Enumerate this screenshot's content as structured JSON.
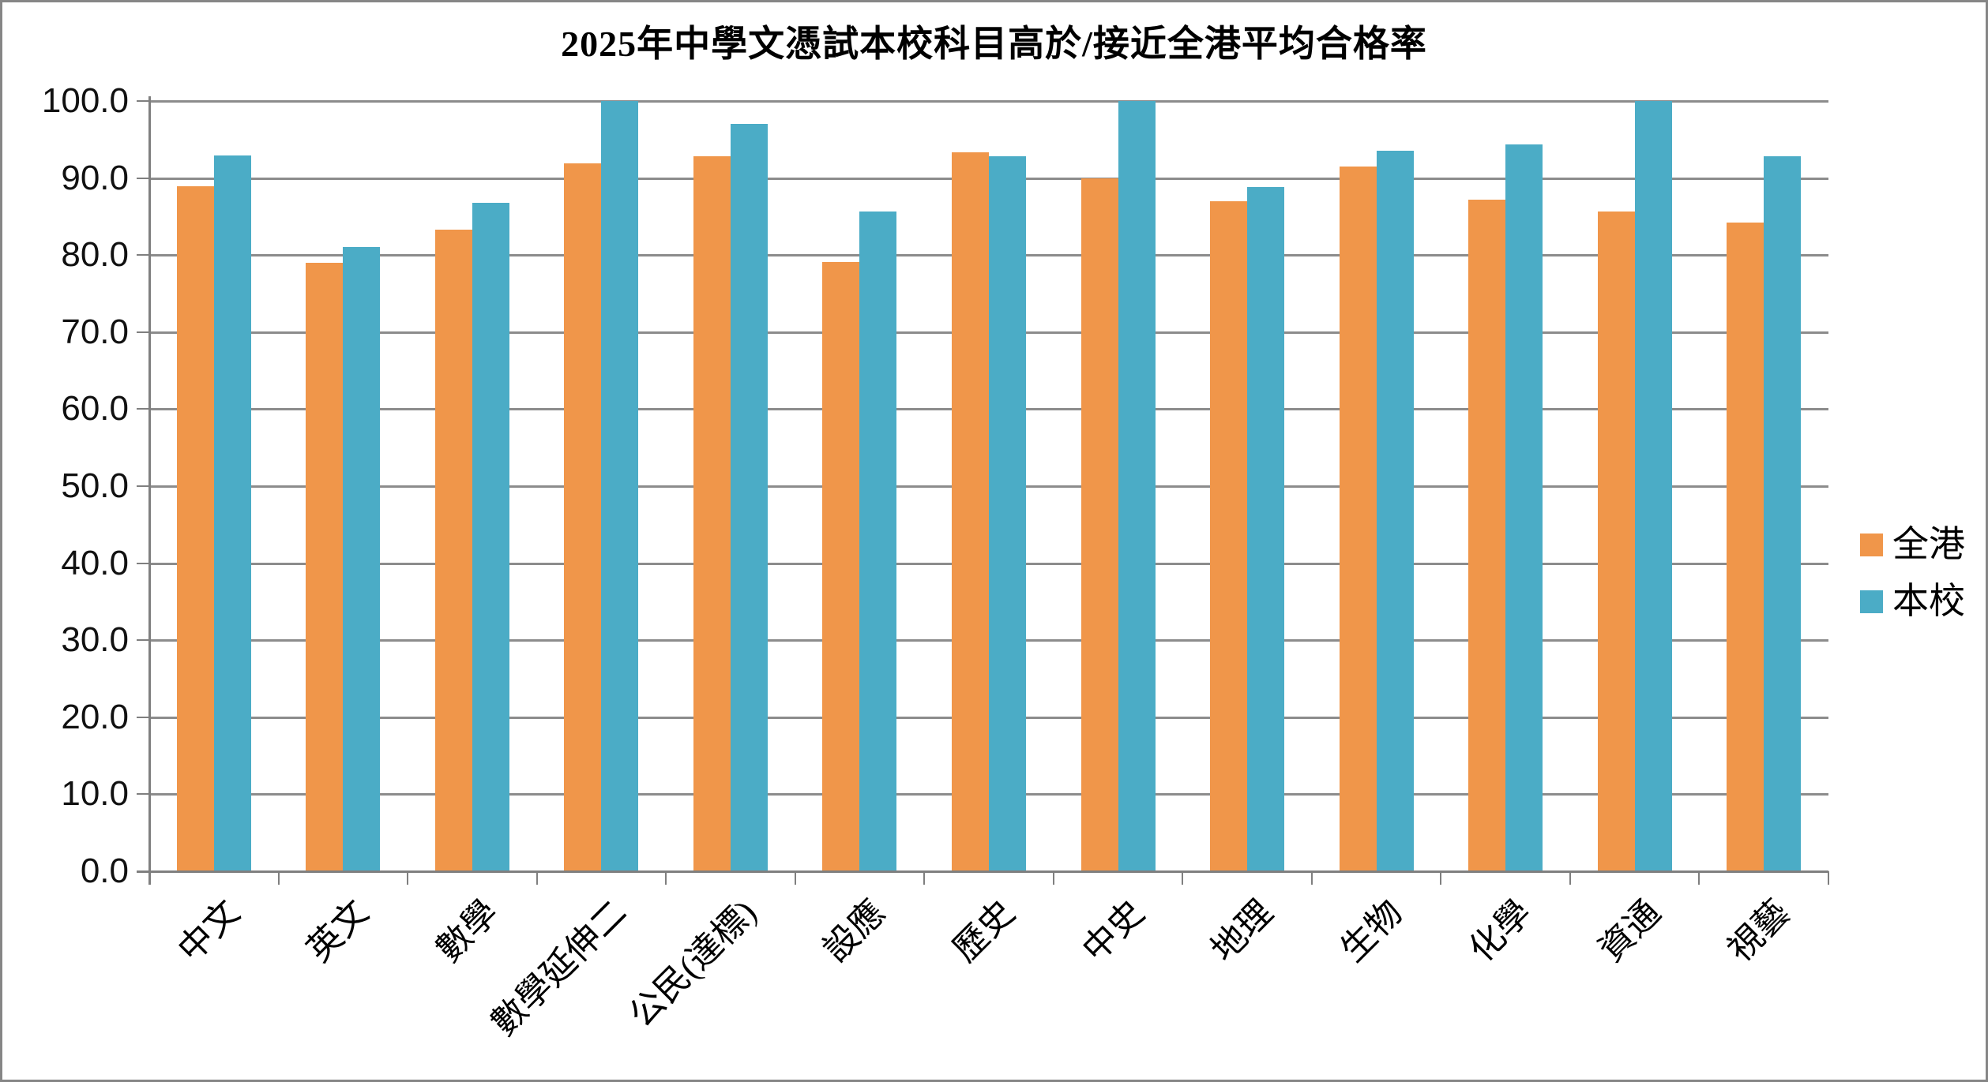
{
  "chart_data": {
    "type": "bar",
    "title": "2025年中學文憑試本校科目高於/接近全港平均合格率",
    "categories": [
      "中文",
      "英文",
      "數學",
      "數學延伸二",
      "公民(達標)",
      "設應",
      "歷史",
      "中史",
      "地理",
      "生物",
      "化學",
      "資通",
      "視藝"
    ],
    "series": [
      {
        "name": "全港",
        "color": "#F0964A",
        "values": [
          88.9,
          79.0,
          83.3,
          91.9,
          92.8,
          79.1,
          93.3,
          90.0,
          87.0,
          91.5,
          87.2,
          85.7,
          84.2
        ]
      },
      {
        "name": "本校",
        "color": "#4BACC6",
        "values": [
          92.9,
          81.0,
          86.8,
          100.0,
          97.0,
          85.7,
          92.8,
          100.0,
          88.8,
          93.5,
          94.4,
          100.0,
          92.8
        ]
      }
    ],
    "xlabel": "",
    "ylabel": "",
    "ylim": [
      0,
      100
    ],
    "ytick_step": 10,
    "ytick_labels": [
      "0.0",
      "10.0",
      "20.0",
      "30.0",
      "40.0",
      "50.0",
      "60.0",
      "70.0",
      "80.0",
      "90.0",
      "100.0"
    ],
    "grid": true,
    "legend_position": "right",
    "axis_color": "#7F7F7F",
    "grid_color": "#8C8C8C"
  }
}
